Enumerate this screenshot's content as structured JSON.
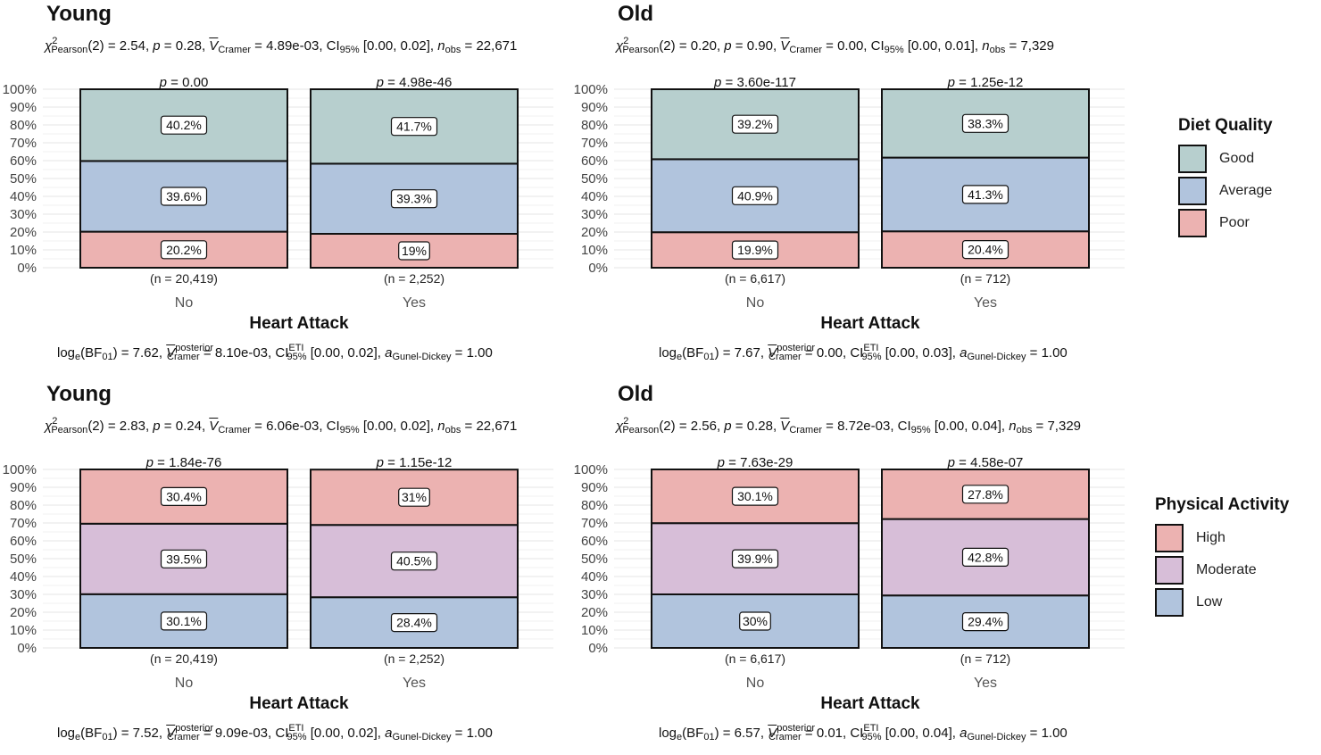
{
  "colors": {
    "Good": "#b7cfce",
    "Average": "#b1c4dd",
    "Poor": "#ecb2b1",
    "High": "#ecb2b1",
    "Moderate": "#d7bed8",
    "Low": "#b1c4dd"
  },
  "legends": [
    {
      "title": "Diet Quality",
      "items": [
        "Good",
        "Average",
        "Poor"
      ]
    },
    {
      "title": "Physical Activity",
      "items": [
        "High",
        "Moderate",
        "Low"
      ]
    }
  ],
  "chart_data": [
    {
      "type": "bar",
      "stacked": "percent",
      "title": "Young",
      "stats": {
        "chi2": "2.54",
        "p": "0.28",
        "v": "4.89e-03",
        "ci": "[0.00, 0.02]",
        "n_obs": "22,671"
      },
      "bayes": {
        "bf": "7.62",
        "v_post": "8.10e-03",
        "ci": "[0.00, 0.02]",
        "a": "1.00"
      },
      "xlabel": "Heart Attack",
      "categories": [
        "No",
        "Yes"
      ],
      "counts": [
        "(n = 20,419)",
        "(n = 2,252)"
      ],
      "pvalues": [
        "0.00",
        "4.98e-46"
      ],
      "yticks": [
        "0%",
        "10%",
        "20%",
        "30%",
        "40%",
        "50%",
        "60%",
        "70%",
        "80%",
        "90%",
        "100%"
      ],
      "ylim": [
        0,
        100
      ],
      "series": [
        {
          "name": "Poor",
          "values": [
            20.2,
            19
          ],
          "labels": [
            "20.2%",
            "19%"
          ]
        },
        {
          "name": "Average",
          "values": [
            39.6,
            39.3
          ],
          "labels": [
            "39.6%",
            "39.3%"
          ]
        },
        {
          "name": "Good",
          "values": [
            40.2,
            41.7
          ],
          "labels": [
            "40.2%",
            "41.7%"
          ]
        }
      ]
    },
    {
      "type": "bar",
      "stacked": "percent",
      "title": "Old",
      "stats": {
        "chi2": "0.20",
        "p": "0.90",
        "v": "0.00",
        "ci": "[0.00, 0.01]",
        "n_obs": "7,329"
      },
      "bayes": {
        "bf": "7.67",
        "v_post": "0.00",
        "ci": "[0.00, 0.03]",
        "a": "1.00"
      },
      "xlabel": "Heart Attack",
      "categories": [
        "No",
        "Yes"
      ],
      "counts": [
        "(n = 6,617)",
        "(n = 712)"
      ],
      "pvalues": [
        "3.60e-117",
        "1.25e-12"
      ],
      "yticks": [
        "0%",
        "10%",
        "20%",
        "30%",
        "40%",
        "50%",
        "60%",
        "70%",
        "80%",
        "90%",
        "100%"
      ],
      "ylim": [
        0,
        100
      ],
      "series": [
        {
          "name": "Poor",
          "values": [
            19.9,
            20.4
          ],
          "labels": [
            "19.9%",
            "20.4%"
          ]
        },
        {
          "name": "Average",
          "values": [
            40.9,
            41.3
          ],
          "labels": [
            "40.9%",
            "41.3%"
          ]
        },
        {
          "name": "Good",
          "values": [
            39.2,
            38.3
          ],
          "labels": [
            "39.2%",
            "38.3%"
          ]
        }
      ]
    },
    {
      "type": "bar",
      "stacked": "percent",
      "title": "Young",
      "stats": {
        "chi2": "2.83",
        "p": "0.24",
        "v": "6.06e-03",
        "ci": "[0.00, 0.02]",
        "n_obs": "22,671"
      },
      "bayes": {
        "bf": "7.52",
        "v_post": "9.09e-03",
        "ci": "[0.00, 0.02]",
        "a": "1.00"
      },
      "xlabel": "Heart Attack",
      "categories": [
        "No",
        "Yes"
      ],
      "counts": [
        "(n = 20,419)",
        "(n = 2,252)"
      ],
      "pvalues": [
        "1.84e-76",
        "1.15e-12"
      ],
      "yticks": [
        "0%",
        "10%",
        "20%",
        "30%",
        "40%",
        "50%",
        "60%",
        "70%",
        "80%",
        "90%",
        "100%"
      ],
      "ylim": [
        0,
        100
      ],
      "series": [
        {
          "name": "Low",
          "values": [
            30.1,
            28.4
          ],
          "labels": [
            "30.1%",
            "28.4%"
          ]
        },
        {
          "name": "Moderate",
          "values": [
            39.5,
            40.5
          ],
          "labels": [
            "39.5%",
            "40.5%"
          ]
        },
        {
          "name": "High",
          "values": [
            30.4,
            31
          ],
          "labels": [
            "30.4%",
            "31%"
          ]
        }
      ]
    },
    {
      "type": "bar",
      "stacked": "percent",
      "title": "Old",
      "stats": {
        "chi2": "2.56",
        "p": "0.28",
        "v": "8.72e-03",
        "ci": "[0.00, 0.04]",
        "n_obs": "7,329"
      },
      "bayes": {
        "bf": "6.57",
        "v_post": "0.01",
        "ci": "[0.00, 0.04]",
        "a": "1.00"
      },
      "xlabel": "Heart Attack",
      "categories": [
        "No",
        "Yes"
      ],
      "counts": [
        "(n = 6,617)",
        "(n = 712)"
      ],
      "pvalues": [
        "7.63e-29",
        "4.58e-07"
      ],
      "yticks": [
        "0%",
        "10%",
        "20%",
        "30%",
        "40%",
        "50%",
        "60%",
        "70%",
        "80%",
        "90%",
        "100%"
      ],
      "ylim": [
        0,
        100
      ],
      "series": [
        {
          "name": "Low",
          "values": [
            30,
            29.4
          ],
          "labels": [
            "30%",
            "29.4%"
          ]
        },
        {
          "name": "Moderate",
          "values": [
            39.9,
            42.8
          ],
          "labels": [
            "39.9%",
            "42.8%"
          ]
        },
        {
          "name": "High",
          "values": [
            30.1,
            27.8
          ],
          "labels": [
            "30.1%",
            "27.8%"
          ]
        }
      ]
    }
  ]
}
